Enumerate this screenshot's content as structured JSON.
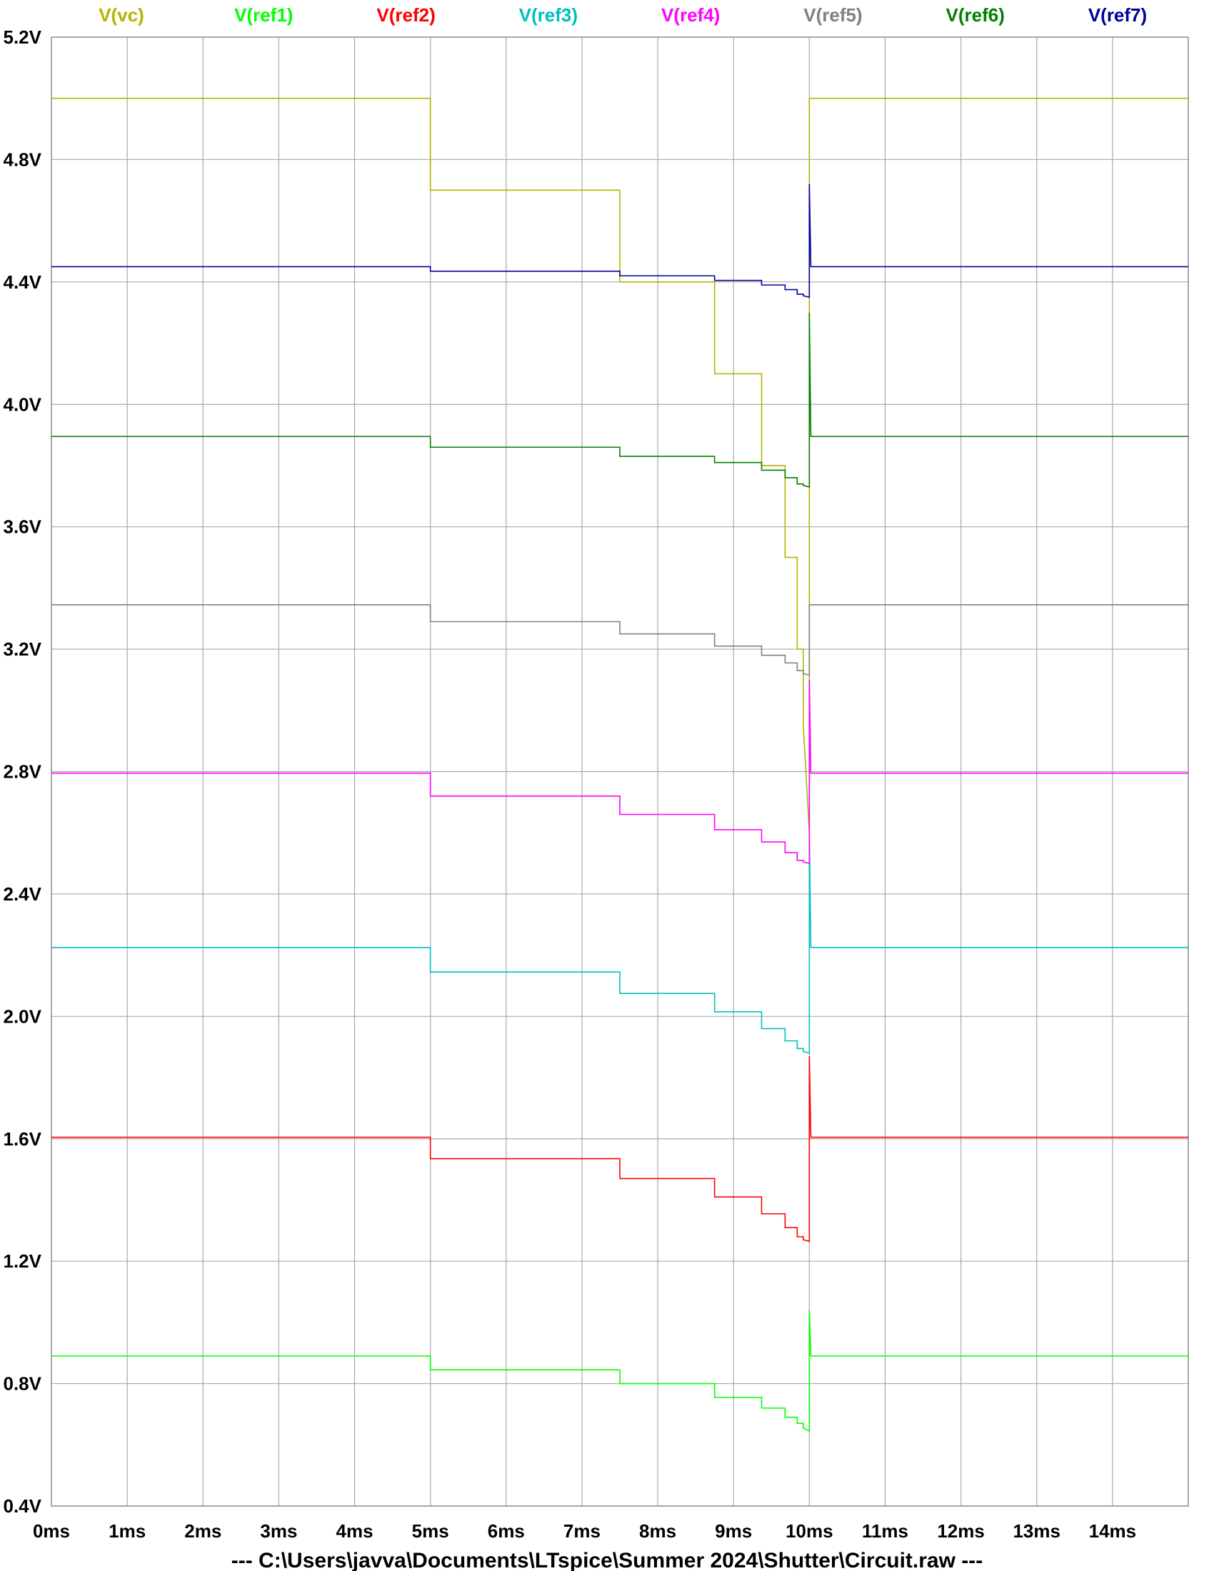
{
  "chart_data": {
    "type": "line",
    "title": "",
    "xlabel": "",
    "ylabel": "",
    "xlim": [
      0,
      15
    ],
    "ylim": [
      0.4,
      5.2
    ],
    "grid": true,
    "legend_position": "top",
    "x_ticks": [
      {
        "value": 0,
        "label": "0ms"
      },
      {
        "value": 1,
        "label": "1ms"
      },
      {
        "value": 2,
        "label": "2ms"
      },
      {
        "value": 3,
        "label": "3ms"
      },
      {
        "value": 4,
        "label": "4ms"
      },
      {
        "value": 5,
        "label": "5ms"
      },
      {
        "value": 6,
        "label": "6ms"
      },
      {
        "value": 7,
        "label": "7ms"
      },
      {
        "value": 8,
        "label": "8ms"
      },
      {
        "value": 9,
        "label": "9ms"
      },
      {
        "value": 10,
        "label": "10ms"
      },
      {
        "value": 11,
        "label": "11ms"
      },
      {
        "value": 12,
        "label": "12ms"
      },
      {
        "value": 13,
        "label": "13ms"
      },
      {
        "value": 14,
        "label": "14ms"
      }
    ],
    "y_ticks": [
      {
        "value": 0.4,
        "label": "0.4V"
      },
      {
        "value": 0.8,
        "label": "0.8V"
      },
      {
        "value": 1.2,
        "label": "1.2V"
      },
      {
        "value": 1.6,
        "label": "1.6V"
      },
      {
        "value": 2.0,
        "label": "2.0V"
      },
      {
        "value": 2.4,
        "label": "2.4V"
      },
      {
        "value": 2.8,
        "label": "2.8V"
      },
      {
        "value": 3.2,
        "label": "3.2V"
      },
      {
        "value": 3.6,
        "label": "3.6V"
      },
      {
        "value": 4.0,
        "label": "4.0V"
      },
      {
        "value": 4.4,
        "label": "4.4V"
      },
      {
        "value": 4.8,
        "label": "4.8V"
      },
      {
        "value": 5.2,
        "label": "5.2V"
      }
    ],
    "series": [
      {
        "name": "V(vc)",
        "color": "#b4b400",
        "points": [
          [
            0,
            5.0
          ],
          [
            5,
            5.0
          ],
          [
            5,
            4.7
          ],
          [
            7.5,
            4.7
          ],
          [
            7.5,
            4.4
          ],
          [
            8.75,
            4.4
          ],
          [
            8.75,
            4.1
          ],
          [
            9.37,
            4.1
          ],
          [
            9.37,
            3.8
          ],
          [
            9.68,
            3.8
          ],
          [
            9.68,
            3.5
          ],
          [
            9.84,
            3.5
          ],
          [
            9.84,
            3.2
          ],
          [
            9.92,
            3.2
          ],
          [
            9.92,
            2.95
          ],
          [
            10.0,
            2.6
          ],
          [
            10.0,
            5.0
          ],
          [
            15,
            5.0
          ]
        ]
      },
      {
        "name": "V(ref1)",
        "color": "#00ff00",
        "points": [
          [
            0,
            0.89
          ],
          [
            5,
            0.89
          ],
          [
            5,
            0.845
          ],
          [
            7.5,
            0.845
          ],
          [
            7.5,
            0.8
          ],
          [
            8.75,
            0.8
          ],
          [
            8.75,
            0.755
          ],
          [
            9.37,
            0.755
          ],
          [
            9.37,
            0.72
          ],
          [
            9.68,
            0.72
          ],
          [
            9.68,
            0.69
          ],
          [
            9.84,
            0.69
          ],
          [
            9.84,
            0.67
          ],
          [
            9.92,
            0.67
          ],
          [
            9.92,
            0.655
          ],
          [
            10.0,
            0.645
          ],
          [
            10.0,
            1.04
          ],
          [
            10.02,
            0.89
          ],
          [
            15,
            0.89
          ]
        ]
      },
      {
        "name": "V(ref2)",
        "color": "#ff0000",
        "points": [
          [
            0,
            1.605
          ],
          [
            5,
            1.605
          ],
          [
            5,
            1.535
          ],
          [
            7.5,
            1.535
          ],
          [
            7.5,
            1.47
          ],
          [
            8.75,
            1.47
          ],
          [
            8.75,
            1.41
          ],
          [
            9.37,
            1.41
          ],
          [
            9.37,
            1.355
          ],
          [
            9.68,
            1.355
          ],
          [
            9.68,
            1.31
          ],
          [
            9.84,
            1.31
          ],
          [
            9.84,
            1.28
          ],
          [
            9.92,
            1.28
          ],
          [
            9.92,
            1.27
          ],
          [
            10.0,
            1.265
          ],
          [
            10.0,
            1.87
          ],
          [
            10.02,
            1.605
          ],
          [
            15,
            1.605
          ]
        ]
      },
      {
        "name": "V(ref3)",
        "color": "#00bfbf",
        "points": [
          [
            0,
            2.225
          ],
          [
            5,
            2.225
          ],
          [
            5,
            2.145
          ],
          [
            7.5,
            2.145
          ],
          [
            7.5,
            2.075
          ],
          [
            8.75,
            2.075
          ],
          [
            8.75,
            2.015
          ],
          [
            9.37,
            2.015
          ],
          [
            9.37,
            1.96
          ],
          [
            9.68,
            1.96
          ],
          [
            9.68,
            1.92
          ],
          [
            9.84,
            1.92
          ],
          [
            9.84,
            1.895
          ],
          [
            9.92,
            1.895
          ],
          [
            9.92,
            1.885
          ],
          [
            10.0,
            1.88
          ],
          [
            10.0,
            2.6
          ],
          [
            10.02,
            2.225
          ],
          [
            15,
            2.225
          ]
        ]
      },
      {
        "name": "V(ref4)",
        "color": "#ff00ff",
        "points": [
          [
            0,
            2.795
          ],
          [
            5,
            2.795
          ],
          [
            5,
            2.72
          ],
          [
            7.5,
            2.72
          ],
          [
            7.5,
            2.66
          ],
          [
            8.75,
            2.66
          ],
          [
            8.75,
            2.61
          ],
          [
            9.37,
            2.61
          ],
          [
            9.37,
            2.57
          ],
          [
            9.68,
            2.57
          ],
          [
            9.68,
            2.535
          ],
          [
            9.84,
            2.535
          ],
          [
            9.84,
            2.51
          ],
          [
            9.92,
            2.51
          ],
          [
            9.92,
            2.505
          ],
          [
            10.0,
            2.5
          ],
          [
            10.0,
            3.1
          ],
          [
            10.02,
            2.795
          ],
          [
            15,
            2.795
          ]
        ]
      },
      {
        "name": "V(ref5)",
        "color": "#808080",
        "points": [
          [
            0,
            3.345
          ],
          [
            5,
            3.345
          ],
          [
            5,
            3.29
          ],
          [
            7.5,
            3.29
          ],
          [
            7.5,
            3.25
          ],
          [
            8.75,
            3.25
          ],
          [
            8.75,
            3.21
          ],
          [
            9.37,
            3.21
          ],
          [
            9.37,
            3.18
          ],
          [
            9.68,
            3.18
          ],
          [
            9.68,
            3.155
          ],
          [
            9.84,
            3.155
          ],
          [
            9.84,
            3.13
          ],
          [
            9.92,
            3.13
          ],
          [
            9.92,
            3.12
          ],
          [
            10.0,
            3.115
          ],
          [
            10.0,
            3.345
          ],
          [
            15,
            3.345
          ]
        ]
      },
      {
        "name": "V(ref6)",
        "color": "#008000",
        "points": [
          [
            0,
            3.895
          ],
          [
            5,
            3.895
          ],
          [
            5,
            3.86
          ],
          [
            7.5,
            3.86
          ],
          [
            7.5,
            3.83
          ],
          [
            8.75,
            3.83
          ],
          [
            8.75,
            3.81
          ],
          [
            9.37,
            3.81
          ],
          [
            9.37,
            3.785
          ],
          [
            9.68,
            3.785
          ],
          [
            9.68,
            3.76
          ],
          [
            9.84,
            3.76
          ],
          [
            9.84,
            3.74
          ],
          [
            9.92,
            3.74
          ],
          [
            9.92,
            3.735
          ],
          [
            10.0,
            3.73
          ],
          [
            10.0,
            4.3
          ],
          [
            10.02,
            3.895
          ],
          [
            15,
            3.895
          ]
        ]
      },
      {
        "name": "V(ref7)",
        "color": "#0000a0",
        "points": [
          [
            0,
            4.45
          ],
          [
            5,
            4.45
          ],
          [
            5,
            4.435
          ],
          [
            7.5,
            4.435
          ],
          [
            7.5,
            4.42
          ],
          [
            8.75,
            4.42
          ],
          [
            8.75,
            4.405
          ],
          [
            9.37,
            4.405
          ],
          [
            9.37,
            4.39
          ],
          [
            9.68,
            4.39
          ],
          [
            9.68,
            4.375
          ],
          [
            9.84,
            4.375
          ],
          [
            9.84,
            4.36
          ],
          [
            9.92,
            4.36
          ],
          [
            9.92,
            4.355
          ],
          [
            10.0,
            4.35
          ],
          [
            10.0,
            4.72
          ],
          [
            10.02,
            4.45
          ],
          [
            15,
            4.45
          ]
        ]
      }
    ]
  },
  "footer": {
    "file_path": "---  C:\\Users\\javva\\Documents\\LTspice\\Summer 2024\\Shutter\\Circuit.raw  ---"
  }
}
